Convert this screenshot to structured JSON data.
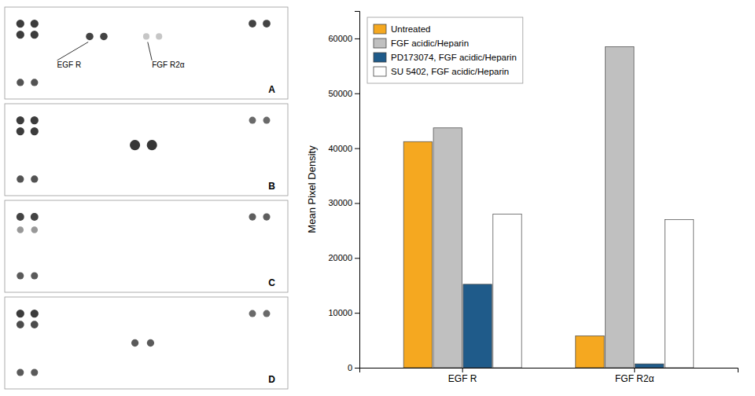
{
  "chart_data": {
    "type": "bar",
    "categories": [
      "EGF R",
      "FGF R2α"
    ],
    "series": [
      {
        "name": "Untreated",
        "color": "#F5A820",
        "values": [
          41200,
          5800
        ]
      },
      {
        "name": "FGF acidic/Heparin",
        "color": "#C0C0C0",
        "values": [
          43700,
          58500
        ]
      },
      {
        "name": "PD173074, FGF acidic/Heparin",
        "color": "#1F5B8A",
        "values": [
          15200,
          700
        ]
      },
      {
        "name": "SU 5402, FGF acidic/Heparin",
        "color": "#FFFFFF",
        "values": [
          28000,
          27000
        ]
      }
    ],
    "ylabel": "Mean Pixel Density",
    "ylim": [
      0,
      65000
    ],
    "yticks": [
      0,
      10000,
      20000,
      30000,
      40000,
      50000,
      60000
    ],
    "grid": false,
    "legend": "upper left",
    "annotations": [
      "A",
      "B",
      "C",
      "D",
      "EGF R",
      "FGF R2α"
    ]
  }
}
